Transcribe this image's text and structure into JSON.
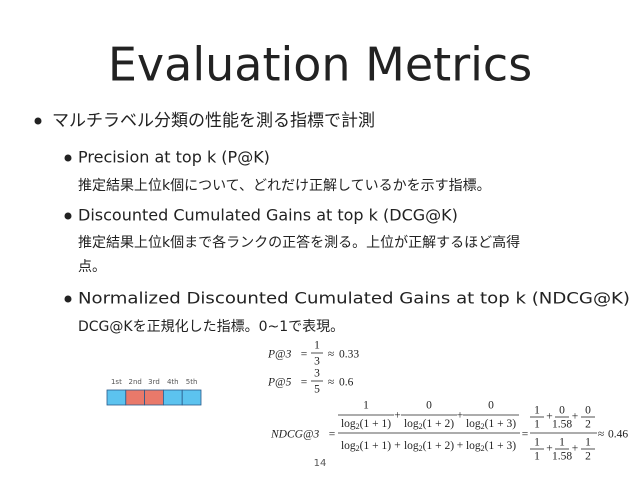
{
  "title": "Evaluation Metrics",
  "bullets": [
    {
      "text": "マルチラベル分類の性能を測る指標で計測",
      "items": [
        {
          "heading": "Precision at top k (P@K)",
          "description": [
            "推定結果上位k個について、どれだけ正解しているかを示す指標。"
          ]
        },
        {
          "heading": "Discounted Cumulated Gains at top k (DCG@K)",
          "description": [
            "推定結果上位k個まで各ランクの正答を測る。上位が正解するほど高得",
            "点。"
          ]
        },
        {
          "heading": "Normalized Discounted Cumulated Gains at top k (NDCG@K)",
          "description": [
            "DCG@Kを正規化した指標。0~1で表現。"
          ]
        }
      ]
    }
  ],
  "ranking": {
    "labels": [
      "1st",
      "2nd",
      "3rd",
      "4th",
      "5th"
    ],
    "colors": [
      "#5cc3ef",
      "#e9796a",
      "#e9796a",
      "#5cc3ef",
      "#5cc3ef"
    ]
  },
  "formulas": {
    "precision": [
      {
        "lhs": "P@3",
        "eq": "=",
        "num": "1",
        "den": "3",
        "approx": "≈",
        "result": "0.33"
      },
      {
        "lhs": "P@5",
        "eq": "=",
        "num": "3",
        "den": "5",
        "approx": "≈",
        "result": "0.6"
      }
    ],
    "ndcg": {
      "lhs": "NDCG@3",
      "eq": "=",
      "plus": "+",
      "log": "log",
      "base": "2",
      "num_terms": [
        {
          "num": "1",
          "arg": "(1 + 1)"
        },
        {
          "num": "0",
          "arg": "(1 + 2)"
        },
        {
          "num": "0",
          "arg": "(1 + 3)"
        }
      ],
      "den_args": [
        "(1 + 1)",
        "(1 + 2)",
        "(1 + 3)"
      ],
      "eval_num": [
        {
          "num": "1",
          "den": "1"
        },
        {
          "num": "0",
          "den": "1.58"
        },
        {
          "num": "0",
          "den": "2"
        }
      ],
      "eval_den": [
        {
          "num": "1",
          "den": "1"
        },
        {
          "num": "1",
          "den": "1.58"
        },
        {
          "num": "1",
          "den": "2"
        }
      ],
      "approx": "≈",
      "result": "0.46"
    }
  },
  "page_number": "14"
}
